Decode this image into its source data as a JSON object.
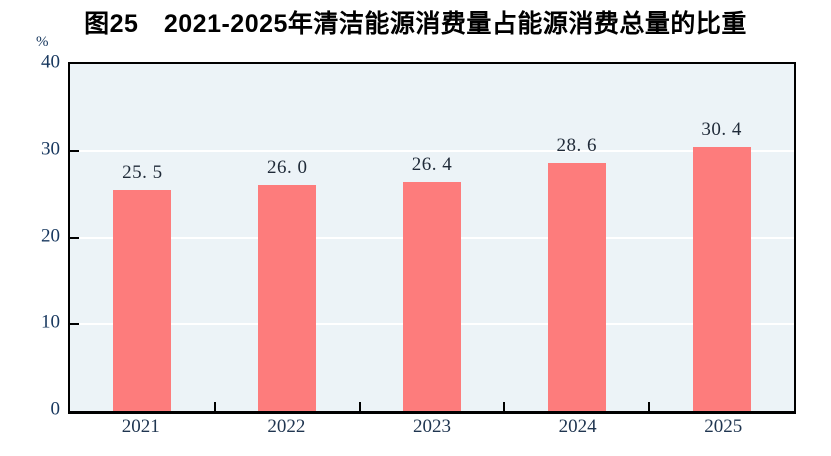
{
  "chart_data": {
    "type": "bar",
    "title": "图25　2021-2025年清洁能源消费量占能源消费总量的比重",
    "ylabel": "%",
    "xlabel": "",
    "categories": [
      "2021",
      "2022",
      "2023",
      "2024",
      "2025"
    ],
    "values": [
      25.5,
      26.0,
      26.4,
      28.6,
      30.4
    ],
    "value_labels": [
      "25. 5",
      "26. 0",
      "26. 4",
      "28. 6",
      "30. 4"
    ],
    "ylim": [
      0,
      40
    ],
    "yticks": [
      0,
      10,
      20,
      30,
      40
    ],
    "ytick_labels": [
      "0",
      "10",
      "20",
      "30",
      "40"
    ],
    "grid": true,
    "legend_position": "none",
    "colors": {
      "bar": "#FD7C7C",
      "plot_background": "#ECF3F7",
      "gridline": "#FFFFFF",
      "axis_frame": "#000000",
      "axis_labels": "#17375E",
      "value_labels": "#1F2A38",
      "title": "#000000"
    }
  }
}
